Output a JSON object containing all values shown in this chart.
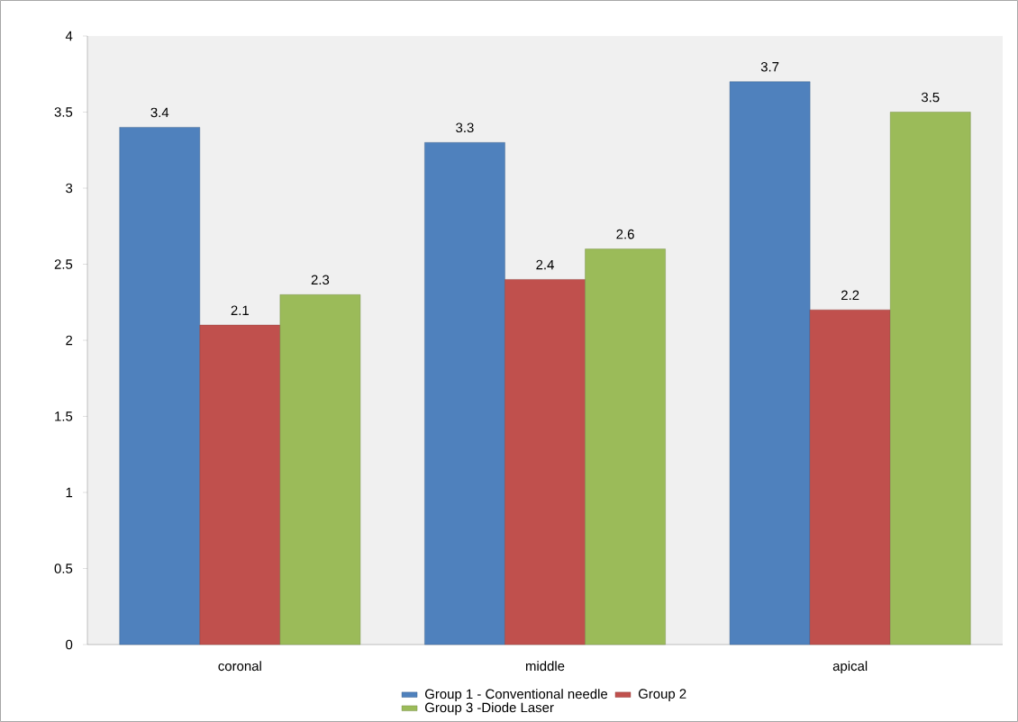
{
  "chart_data": {
    "type": "bar",
    "categories": [
      "coronal",
      "middle",
      "apical"
    ],
    "series": [
      {
        "name": "Group 1 - Conventional needle",
        "color": "#4f81bd",
        "values": [
          3.4,
          3.3,
          3.7
        ]
      },
      {
        "name": "Group 2",
        "color": "#c0504d",
        "values": [
          2.1,
          2.4,
          2.2
        ]
      },
      {
        "name": "Group 3 -Diode Laser",
        "color": "#9bbb59",
        "values": [
          2.3,
          2.6,
          3.5
        ]
      }
    ],
    "ylim": [
      0,
      4
    ],
    "yticks": [
      0,
      0.5,
      1,
      1.5,
      2,
      2.5,
      3,
      3.5,
      4
    ],
    "data_labels": true,
    "grid": false,
    "legend": "bottom"
  }
}
